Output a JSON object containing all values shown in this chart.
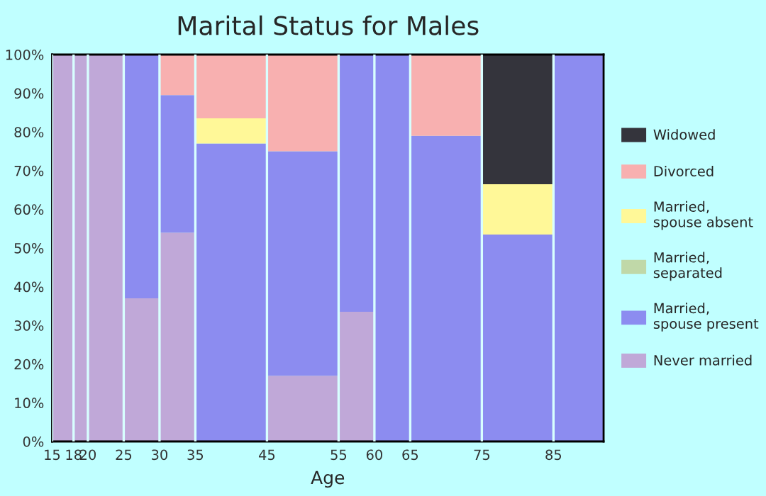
{
  "chart_data": {
    "type": "bar",
    "stacked": true,
    "title": "Marital Status for Males",
    "xlabel": "Age",
    "x": [
      16.5,
      19,
      22.5,
      27.5,
      32.5,
      40,
      50,
      57.5,
      62.5,
      70,
      80,
      88.5
    ],
    "xlim": [
      15,
      92
    ],
    "xticks": [
      15,
      18,
      20,
      25,
      30,
      35,
      45,
      55,
      60,
      65,
      75,
      85
    ],
    "ylim": [
      0,
      100
    ],
    "yticks": [
      {
        "value": 0,
        "label": "0%"
      },
      {
        "value": 10,
        "label": "10%"
      },
      {
        "value": 20,
        "label": "20%"
      },
      {
        "value": 30,
        "label": "30%"
      },
      {
        "value": 40,
        "label": "40%"
      },
      {
        "value": 50,
        "label": "50%"
      },
      {
        "value": 60,
        "label": "60%"
      },
      {
        "value": 70,
        "label": "70%"
      },
      {
        "value": 80,
        "label": "80%"
      },
      {
        "value": 90,
        "label": "90%"
      },
      {
        "value": 100,
        "label": "100%"
      }
    ],
    "grid": "x",
    "legend": "right",
    "series": [
      {
        "name": "Never married",
        "color": "#c0a8d8",
        "values": [
          100,
          100,
          100,
          37,
          54,
          0,
          17,
          33.5,
          0,
          0,
          0,
          0
        ]
      },
      {
        "name": "Married,\nspouse present",
        "color": "#8c8cf0",
        "values": [
          0,
          0,
          0,
          63,
          35.5,
          77,
          58,
          66.5,
          100,
          79,
          53.5,
          100
        ]
      },
      {
        "name": "Married,\nseparated",
        "color": "#c0d8a8",
        "values": [
          0,
          0,
          0,
          0,
          0,
          0,
          0,
          0,
          0,
          0,
          0,
          0
        ]
      },
      {
        "name": "Married,\nspouse absent",
        "color": "#fff898",
        "values": [
          0,
          0,
          0,
          0,
          0,
          6.5,
          0,
          0,
          0,
          0,
          13,
          0
        ]
      },
      {
        "name": "Divorced",
        "color": "#f8b0b0",
        "values": [
          0,
          0,
          0,
          0,
          10.5,
          16.5,
          25,
          0,
          0,
          21,
          0,
          0
        ]
      },
      {
        "name": "Widowed",
        "color": "#34343c",
        "values": [
          0,
          0,
          0,
          0,
          0,
          0,
          0,
          0,
          0,
          0,
          33.5,
          0
        ]
      }
    ]
  }
}
